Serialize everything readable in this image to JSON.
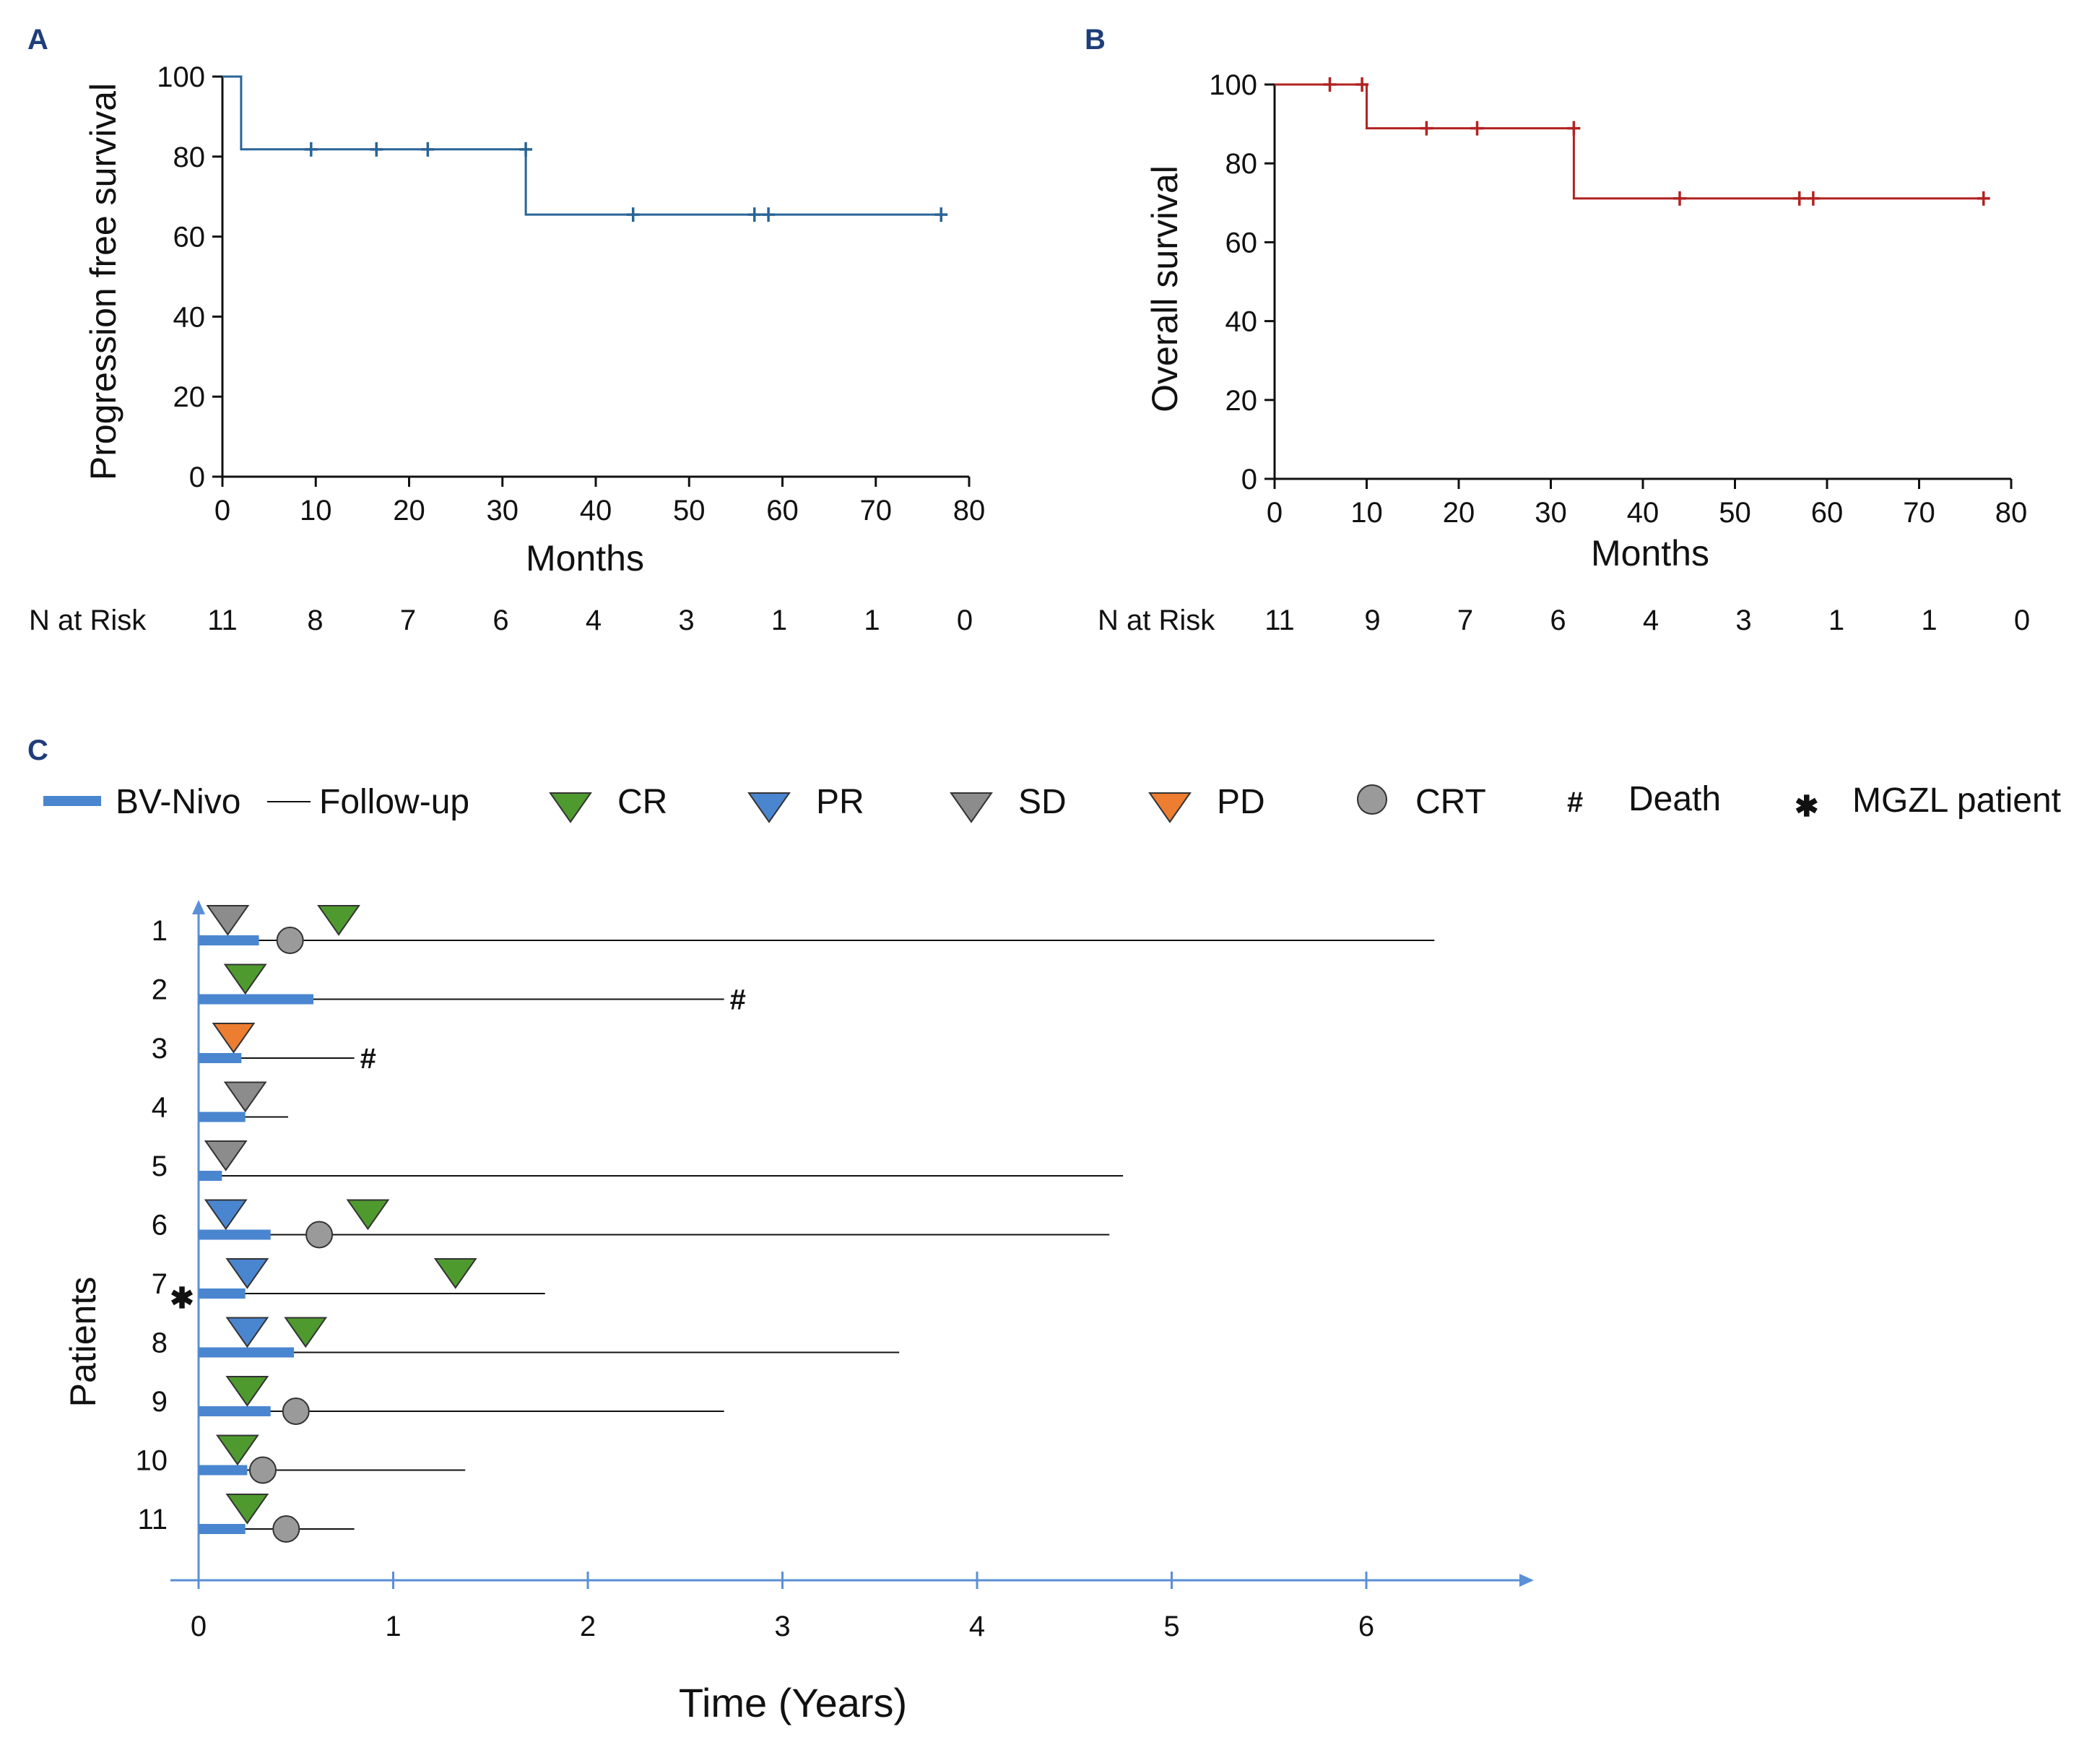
{
  "colors": {
    "pfs": "#2a6496",
    "os": "#b22222",
    "bv": "#4a86d0",
    "axisC": "#5b8fd6",
    "CR": "#4f9a2f",
    "PR": "#4a86d0",
    "SD": "#8c8c8c",
    "PD": "#ed7d31",
    "CRT": "#9a9a9a"
  },
  "chart_data": [
    {
      "panel": "A",
      "type": "line",
      "subtype": "kaplan-meier",
      "title": "",
      "xlabel": "Months",
      "ylabel": "Progression free survival",
      "xlim": [
        0,
        80
      ],
      "ylim": [
        0,
        100
      ],
      "xticks": [
        "0",
        "10",
        "20",
        "30",
        "40",
        "50",
        "60",
        "70",
        "80"
      ],
      "yticks": [
        "0",
        "20",
        "40",
        "60",
        "80",
        "100"
      ],
      "steps": [
        [
          0,
          100
        ],
        [
          2,
          100
        ],
        [
          2,
          81.8
        ],
        [
          32.5,
          81.8
        ],
        [
          32.5,
          65.5
        ],
        [
          77,
          65.5
        ]
      ],
      "censors": [
        [
          9.5,
          81.8
        ],
        [
          16.5,
          81.8
        ],
        [
          22,
          81.8
        ],
        [
          32.5,
          81.8
        ],
        [
          44,
          65.5
        ],
        [
          57,
          65.5
        ],
        [
          58.5,
          65.5
        ],
        [
          77,
          65.5
        ]
      ],
      "risk_label": "N at Risk",
      "risk_values": [
        "11",
        "8",
        "7",
        "6",
        "4",
        "3",
        "1",
        "1",
        "0"
      ]
    },
    {
      "panel": "B",
      "type": "line",
      "subtype": "kaplan-meier",
      "title": "",
      "xlabel": "Months",
      "ylabel": "Overall survival",
      "xlim": [
        0,
        80
      ],
      "ylim": [
        0,
        100
      ],
      "xticks": [
        "0",
        "10",
        "20",
        "30",
        "40",
        "50",
        "60",
        "70",
        "80"
      ],
      "yticks": [
        "0",
        "20",
        "40",
        "60",
        "80",
        "100"
      ],
      "steps": [
        [
          0,
          100
        ],
        [
          10,
          100
        ],
        [
          10,
          88.9
        ],
        [
          32.5,
          88.9
        ],
        [
          32.5,
          71.1
        ],
        [
          77,
          71.1
        ]
      ],
      "censors": [
        [
          6,
          100
        ],
        [
          9.5,
          100
        ],
        [
          16.5,
          88.9
        ],
        [
          22,
          88.9
        ],
        [
          32.5,
          88.9
        ],
        [
          44,
          71.1
        ],
        [
          57,
          71.1
        ],
        [
          58.5,
          71.1
        ],
        [
          77,
          71.1
        ]
      ],
      "risk_label": "N at Risk",
      "risk_values": [
        "11",
        "9",
        "7",
        "6",
        "4",
        "3",
        "1",
        "1",
        "0"
      ]
    },
    {
      "panel": "C",
      "type": "swimmer",
      "title": "",
      "xlabel": "Time (Years)",
      "ylabel": "Patients",
      "xlim": [
        0,
        7
      ],
      "xticks": [
        "0",
        "1",
        "2",
        "3",
        "4",
        "5",
        "6"
      ],
      "legend": [
        {
          "key": "BV",
          "label": "BV-Nivo"
        },
        {
          "key": "FU",
          "label": "Follow-up"
        },
        {
          "key": "CR",
          "label": "CR"
        },
        {
          "key": "PR",
          "label": "PR"
        },
        {
          "key": "SD",
          "label": "SD"
        },
        {
          "key": "PD",
          "label": "PD"
        },
        {
          "key": "CRT",
          "label": "CRT"
        },
        {
          "key": "DEATH",
          "label": "Death",
          "symbol": "#"
        },
        {
          "key": "MGZL",
          "label": "MGZL patient",
          "symbol": "✱"
        }
      ],
      "patients": [
        {
          "id": "1",
          "bv_end": 0.31,
          "fu_end": 6.35,
          "responses": [
            {
              "t": 0.15,
              "r": "SD"
            },
            {
              "t": 0.72,
              "r": "CR"
            }
          ],
          "crt": 0.47,
          "death": false,
          "mgzl": false
        },
        {
          "id": "2",
          "bv_end": 0.59,
          "fu_end": 2.7,
          "responses": [
            {
              "t": 0.24,
              "r": "CR"
            }
          ],
          "crt": null,
          "death": true,
          "mgzl": false
        },
        {
          "id": "3",
          "bv_end": 0.22,
          "fu_end": 0.8,
          "responses": [
            {
              "t": 0.18,
              "r": "PD"
            }
          ],
          "crt": null,
          "death": true,
          "mgzl": false
        },
        {
          "id": "4",
          "bv_end": 0.24,
          "fu_end": 0.46,
          "responses": [
            {
              "t": 0.24,
              "r": "SD"
            }
          ],
          "crt": null,
          "death": false,
          "mgzl": false
        },
        {
          "id": "5",
          "bv_end": 0.12,
          "fu_end": 4.75,
          "responses": [
            {
              "t": 0.14,
              "r": "SD"
            }
          ],
          "crt": null,
          "death": false,
          "mgzl": false
        },
        {
          "id": "6",
          "bv_end": 0.37,
          "fu_end": 4.68,
          "responses": [
            {
              "t": 0.14,
              "r": "PR"
            },
            {
              "t": 0.87,
              "r": "CR"
            }
          ],
          "crt": 0.62,
          "death": false,
          "mgzl": false
        },
        {
          "id": "7",
          "bv_end": 0.24,
          "fu_end": 1.78,
          "responses": [
            {
              "t": 0.25,
              "r": "PR"
            },
            {
              "t": 1.32,
              "r": "CR"
            }
          ],
          "crt": null,
          "death": false,
          "mgzl": true
        },
        {
          "id": "8",
          "bv_end": 0.49,
          "fu_end": 3.6,
          "responses": [
            {
              "t": 0.25,
              "r": "PR"
            },
            {
              "t": 0.55,
              "r": "CR"
            }
          ],
          "crt": null,
          "death": false,
          "mgzl": false
        },
        {
          "id": "9",
          "bv_end": 0.37,
          "fu_end": 2.7,
          "responses": [
            {
              "t": 0.25,
              "r": "CR"
            }
          ],
          "crt": 0.5,
          "death": false,
          "mgzl": false
        },
        {
          "id": "10",
          "bv_end": 0.25,
          "fu_end": 1.37,
          "responses": [
            {
              "t": 0.2,
              "r": "CR"
            }
          ],
          "crt": 0.33,
          "death": false,
          "mgzl": false
        },
        {
          "id": "11",
          "bv_end": 0.24,
          "fu_end": 0.8,
          "responses": [
            {
              "t": 0.25,
              "r": "CR"
            }
          ],
          "crt": 0.45,
          "death": false,
          "mgzl": false
        }
      ]
    }
  ]
}
